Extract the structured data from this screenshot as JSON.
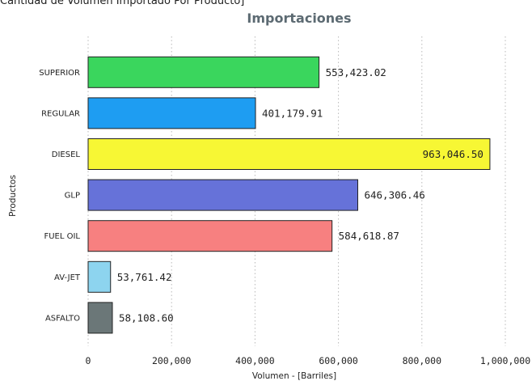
{
  "header": {
    "text": "Cantidad de Volumen Importado Por Producto]"
  },
  "chart_data": {
    "type": "bar",
    "orientation": "horizontal",
    "title": "Importaciones",
    "xlabel": "Volumen - [Barriles]",
    "ylabel": "Productos",
    "categories": [
      "SUPERIOR",
      "REGULAR",
      "DIESEL",
      "GLP",
      "FUEL OIL",
      "AV-JET",
      "ASFALTO"
    ],
    "values": [
      553423.02,
      401179.91,
      963046.5,
      646306.46,
      584618.87,
      53761.42,
      58108.6
    ],
    "value_labels": [
      "553,423.02",
      "401,179.91",
      "963,046.50",
      "646,306.46",
      "584,618.87",
      "53,761.42",
      "58,108.60"
    ],
    "colors": [
      "#3ad65d",
      "#1e9df2",
      "#f7f734",
      "#6672d9",
      "#f78080",
      "#8dd4ef",
      "#6b7778"
    ],
    "xticks": [
      0,
      200000,
      400000,
      600000,
      800000,
      1000000
    ],
    "xtick_labels": [
      "0",
      "200,000",
      "400,000",
      "600,000",
      "800,000",
      "1,000,000"
    ],
    "xlim": [
      0,
      1000000
    ],
    "grid": true,
    "legend": "none"
  }
}
